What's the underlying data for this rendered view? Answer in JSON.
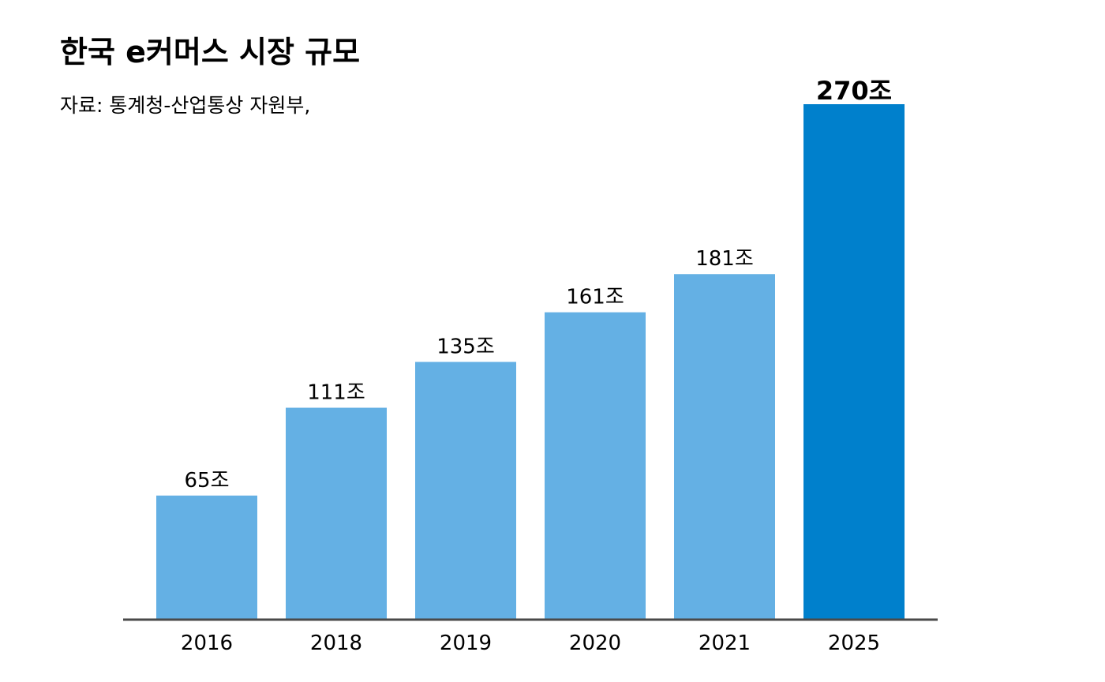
{
  "chart_data": {
    "type": "bar",
    "title": "한국 e커머스 시장 규모",
    "subtitle": "자료: 통계청-산업통상 자원부,",
    "xlabel": "",
    "ylabel": "",
    "categories": [
      "2016",
      "2018",
      "2019",
      "2020",
      "2021",
      "2025"
    ],
    "values": [
      65,
      111,
      135,
      161,
      181,
      270
    ],
    "value_labels": [
      "65조",
      "111조",
      "135조",
      "161조",
      "181조",
      "270조"
    ],
    "highlight_index": 5,
    "ylim": [
      0,
      270
    ],
    "grid": false,
    "legend": "none",
    "colors": {
      "bar": "#64b0e4",
      "highlight_bar": "#0080cc",
      "axis": "#4a4a4a"
    }
  }
}
